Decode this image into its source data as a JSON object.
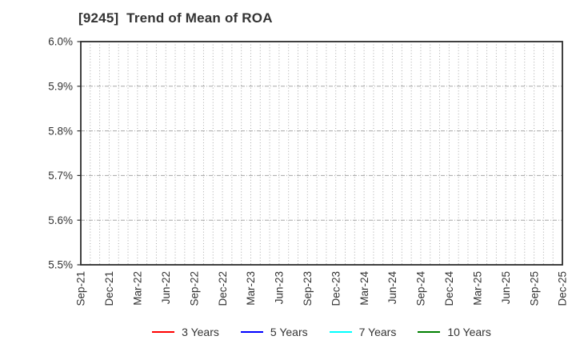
{
  "chart_data": {
    "type": "line",
    "title": "[9245]  Trend of Mean of ROA",
    "title_code": "9245",
    "ylabel": "",
    "xlabel": "",
    "y_unit": "%",
    "ylim": [
      5.5,
      6.0
    ],
    "y_tick_labels": [
      "5.5%",
      "5.6%",
      "5.7%",
      "5.8%",
      "5.9%",
      "6.0%"
    ],
    "x_tick_labels": [
      "Sep-21",
      "Dec-21",
      "Mar-22",
      "Jun-22",
      "Sep-22",
      "Dec-22",
      "Mar-23",
      "Jun-23",
      "Sep-23",
      "Dec-23",
      "Mar-24",
      "Jun-24",
      "Sep-24",
      "Dec-24",
      "Mar-25",
      "Jun-25",
      "Sep-25",
      "Dec-25"
    ],
    "minor_gridlines_per_label_interval": 3,
    "grid": true,
    "legend_position": "bottom",
    "plot_is_empty": true,
    "series": [
      {
        "name": "3 Years",
        "color": "#ff0000",
        "values": []
      },
      {
        "name": "5 Years",
        "color": "#0000ff",
        "values": []
      },
      {
        "name": "7 Years",
        "color": "#00ffff",
        "values": []
      },
      {
        "name": "10 Years",
        "color": "#008000",
        "values": []
      }
    ],
    "colors": {
      "axis_border": "#2b2b2b",
      "gridline": "#a8a8a8",
      "tick_text": "#333333",
      "title_text": "#333333",
      "background": "#ffffff"
    }
  }
}
